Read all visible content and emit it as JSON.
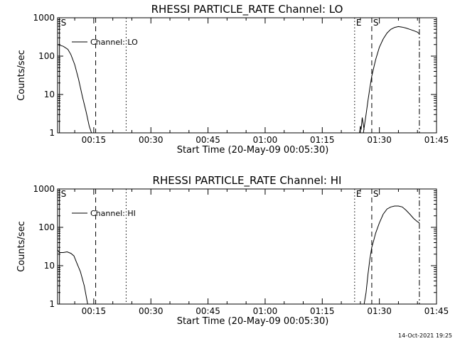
{
  "footer": {
    "timestamp": "14-Oct-2021 19:25"
  },
  "chart_data": [
    {
      "type": "line",
      "title": "RHESSI PARTICLE_RATE Channel: LO",
      "xlabel": "Start Time (20-May-09 00:05:30)",
      "ylabel": "Counts/sec",
      "yscale": "log",
      "ylim": [
        1,
        1000
      ],
      "xlim_min": [
        5.5,
        105
      ],
      "x_ticks": [
        {
          "value": 15,
          "label": "00:15"
        },
        {
          "value": 30,
          "label": "00:30"
        },
        {
          "value": 45,
          "label": "00:45"
        },
        {
          "value": 60,
          "label": "01:00"
        },
        {
          "value": 75,
          "label": "01:15"
        },
        {
          "value": 90,
          "label": "01:30"
        },
        {
          "value": 105,
          "label": "01:45"
        }
      ],
      "y_ticks": [
        {
          "value": 1,
          "label": "1"
        },
        {
          "value": 10,
          "label": "10"
        },
        {
          "value": 100,
          "label": "100"
        },
        {
          "value": 1000,
          "label": "1000"
        }
      ],
      "legend": {
        "position": "top-left",
        "label": "Channel: LO"
      },
      "markers": [
        {
          "x": 6.0,
          "style": "solid",
          "label": "S"
        },
        {
          "x": 15.5,
          "style": "dashed",
          "label": ""
        },
        {
          "x": 23.5,
          "style": "dotted",
          "label": ""
        },
        {
          "x": 83.5,
          "style": "dotted",
          "label": "E"
        },
        {
          "x": 88.0,
          "style": "dashed",
          "label": "S"
        },
        {
          "x": 100.5,
          "style": "dashdot",
          "label": ""
        }
      ],
      "series": [
        {
          "segments": [
            {
              "x": [
                5.5,
                7.0,
                8.2,
                9.0,
                10.0,
                11.0,
                12.0,
                13.0,
                13.8,
                14.4
              ],
              "y": [
                200,
                180,
                150,
                110,
                60,
                25,
                9,
                3.5,
                1.5,
                1.0
              ]
            },
            {
              "x": [
                84.8,
                85.0,
                85.2,
                85.5,
                86.0
              ],
              "y": [
                1.0,
                1.5,
                1.2,
                2.5,
                1.2
              ]
            },
            {
              "x": [
                85.8,
                86.5,
                87.0,
                87.5,
                88.0,
                89.0,
                90.0,
                91.0,
                92.0,
                93.0,
                94.0,
                95.0,
                96.0,
                97.0,
                98.0,
                99.0,
                100.0,
                100.5
              ],
              "y": [
                1.0,
                3,
                7,
                15,
                30,
                80,
                170,
                280,
                400,
                500,
                560,
                590,
                570,
                540,
                500,
                460,
                420,
                380
              ]
            }
          ]
        }
      ]
    },
    {
      "type": "line",
      "title": "RHESSI PARTICLE_RATE Channel: HI",
      "xlabel": "Start Time (20-May-09 00:05:30)",
      "ylabel": "Counts/sec",
      "yscale": "log",
      "ylim": [
        1,
        1000
      ],
      "xlim_min": [
        5.5,
        105
      ],
      "x_ticks": [
        {
          "value": 15,
          "label": "00:15"
        },
        {
          "value": 30,
          "label": "00:30"
        },
        {
          "value": 45,
          "label": "00:45"
        },
        {
          "value": 60,
          "label": "01:00"
        },
        {
          "value": 75,
          "label": "01:15"
        },
        {
          "value": 90,
          "label": "01:30"
        },
        {
          "value": 105,
          "label": "01:45"
        }
      ],
      "y_ticks": [
        {
          "value": 1,
          "label": "1"
        },
        {
          "value": 10,
          "label": "10"
        },
        {
          "value": 100,
          "label": "100"
        },
        {
          "value": 1000,
          "label": "1000"
        }
      ],
      "legend": {
        "position": "top-left",
        "label": "Channel: HI"
      },
      "markers": [
        {
          "x": 6.0,
          "style": "solid",
          "label": "S"
        },
        {
          "x": 15.5,
          "style": "dashed",
          "label": ""
        },
        {
          "x": 23.5,
          "style": "dotted",
          "label": ""
        },
        {
          "x": 83.5,
          "style": "dotted",
          "label": "E"
        },
        {
          "x": 88.0,
          "style": "dashed",
          "label": "S"
        },
        {
          "x": 100.5,
          "style": "dashdot",
          "label": ""
        }
      ],
      "series": [
        {
          "segments": [
            {
              "x": [
                5.5,
                6.0,
                7.0,
                8.0,
                9.0,
                9.8,
                10.5,
                11.5,
                12.5,
                13.4
              ],
              "y": [
                26,
                22,
                22,
                23,
                21,
                18,
                12,
                7,
                3,
                1.0
              ]
            },
            {
              "x": [
                86.0,
                86.5,
                87.0,
                87.5,
                88.0,
                88.5,
                89.0,
                90.0,
                91.0,
                92.0,
                93.0,
                94.0,
                95.0,
                96.0,
                97.0,
                98.0,
                99.0,
                100.0,
                100.5
              ],
              "y": [
                1.0,
                2,
                6,
                15,
                30,
                45,
                70,
                130,
                220,
                300,
                340,
                360,
                360,
                340,
                280,
                220,
                170,
                140,
                130
              ]
            }
          ]
        }
      ]
    }
  ]
}
